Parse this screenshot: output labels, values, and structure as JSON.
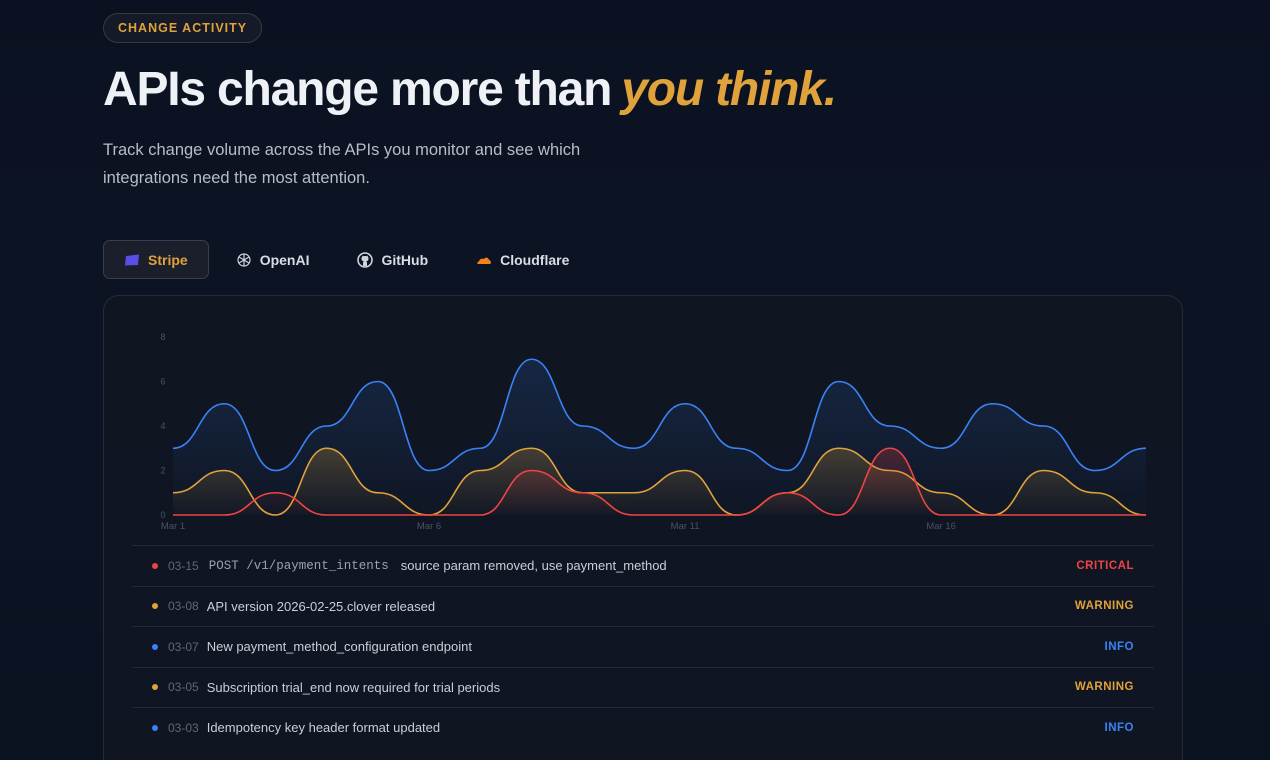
{
  "badge": "CHANGE ACTIVITY",
  "headline": {
    "main": "APIs change more than",
    "accent": "you think."
  },
  "subtitle": "Track change volume across the APIs you monitor and see which integrations need the most attention.",
  "tabs": [
    {
      "label": "Stripe",
      "icon": "stripe-icon",
      "active": true
    },
    {
      "label": "OpenAI",
      "icon": "openai-icon",
      "active": false
    },
    {
      "label": "GitHub",
      "icon": "github-icon",
      "active": false
    },
    {
      "label": "Cloudflare",
      "icon": "cloudflare-icon",
      "active": false
    }
  ],
  "colors": {
    "accent": "#e0a23a",
    "critical": "#ef4444",
    "warning": "#e0a23a",
    "info": "#3b82f6"
  },
  "chart_data": {
    "type": "area",
    "title": "",
    "xlabel": "",
    "ylabel": "",
    "ylim": [
      0,
      8
    ],
    "yticks": [
      "0",
      "2",
      "4",
      "6",
      "8"
    ],
    "xticks": [
      {
        "label": "Mar 1",
        "day": 1
      },
      {
        "label": "Mar 6",
        "day": 6
      },
      {
        "label": "Mar 11",
        "day": 11
      },
      {
        "label": "Mar 16",
        "day": 16
      }
    ],
    "x": [
      1,
      2,
      3,
      4,
      5,
      6,
      7,
      8,
      9,
      10,
      11,
      12,
      13,
      14,
      15,
      16,
      17,
      18,
      19,
      20
    ],
    "series": [
      {
        "name": "",
        "color": "#3b82f6",
        "values": [
          3,
          5,
          2,
          4,
          6,
          2,
          3,
          7,
          4,
          3,
          5,
          3,
          2,
          6,
          4,
          3,
          5,
          4,
          2,
          3
        ]
      },
      {
        "name": "",
        "color": "#e0a23a",
        "values": [
          1,
          2,
          0,
          3,
          1,
          0,
          2,
          3,
          1,
          1,
          2,
          0,
          1,
          3,
          2,
          1,
          0,
          2,
          1,
          0
        ]
      },
      {
        "name": "",
        "color": "#ef4444",
        "values": [
          0,
          0,
          1,
          0,
          0,
          0,
          0,
          2,
          1,
          0,
          0,
          0,
          1,
          0,
          3,
          0,
          0,
          0,
          0,
          0
        ]
      }
    ]
  },
  "events": [
    {
      "date": "03-15",
      "endpoint": "POST /v1/payment_intents",
      "desc": "source param removed, use payment_method",
      "severity": "CRITICAL",
      "color": "#ef4444"
    },
    {
      "date": "03-08",
      "endpoint": "",
      "desc": "API version 2026-02-25.clover released",
      "severity": "WARNING",
      "color": "#e0a23a"
    },
    {
      "date": "03-07",
      "endpoint": "",
      "desc": "New payment_method_configuration endpoint",
      "severity": "INFO",
      "color": "#3b82f6"
    },
    {
      "date": "03-05",
      "endpoint": "",
      "desc": "Subscription trial_end now required for trial periods",
      "severity": "WARNING",
      "color": "#e0a23a"
    },
    {
      "date": "03-03",
      "endpoint": "",
      "desc": "Idempotency key header format updated",
      "severity": "INFO",
      "color": "#3b82f6"
    }
  ]
}
